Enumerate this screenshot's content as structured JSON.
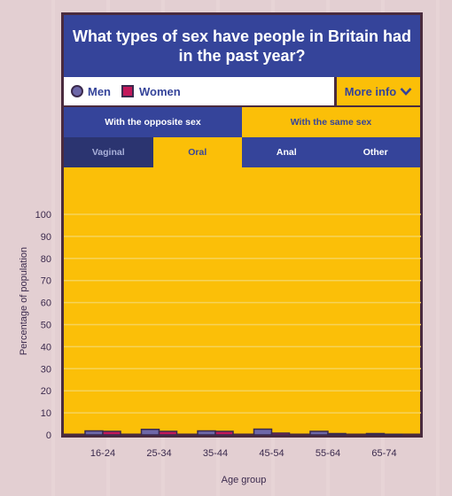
{
  "title": "What types of sex have people in Britain had in the past year?",
  "legend": {
    "men": "Men",
    "women": "Women"
  },
  "more_info": "More info",
  "sex_tabs": [
    {
      "label": "With the opposite sex",
      "active": false
    },
    {
      "label": "With the same sex",
      "active": true
    }
  ],
  "type_tabs": [
    {
      "label": "Vaginal",
      "active": false
    },
    {
      "label": "Oral",
      "active": true
    },
    {
      "label": "Anal",
      "active": false
    },
    {
      "label": "Other",
      "active": false
    }
  ],
  "colors": {
    "men": "#6d67a8",
    "women": "#c2185b",
    "navy": "#35449a",
    "yellow": "#fbbf08",
    "border": "#4a2b3e"
  },
  "chart_data": {
    "type": "bar",
    "title": "",
    "xlabel": "Age group",
    "ylabel": "Percentage of population",
    "ylim": [
      0,
      100
    ],
    "yticks": [
      "0",
      "10",
      "20",
      "30",
      "40",
      "50",
      "60",
      "70",
      "80",
      "90",
      "100"
    ],
    "categories": [
      "16-24",
      "25-34",
      "35-44",
      "45-54",
      "55-64",
      "65-74"
    ],
    "series": [
      {
        "name": "Men",
        "values": [
          1.8,
          2.5,
          1.8,
          2.6,
          1.6,
          0.6
        ]
      },
      {
        "name": "Women",
        "values": [
          1.6,
          1.6,
          1.6,
          0.8,
          0.6,
          0.2
        ]
      }
    ],
    "grid": true
  }
}
